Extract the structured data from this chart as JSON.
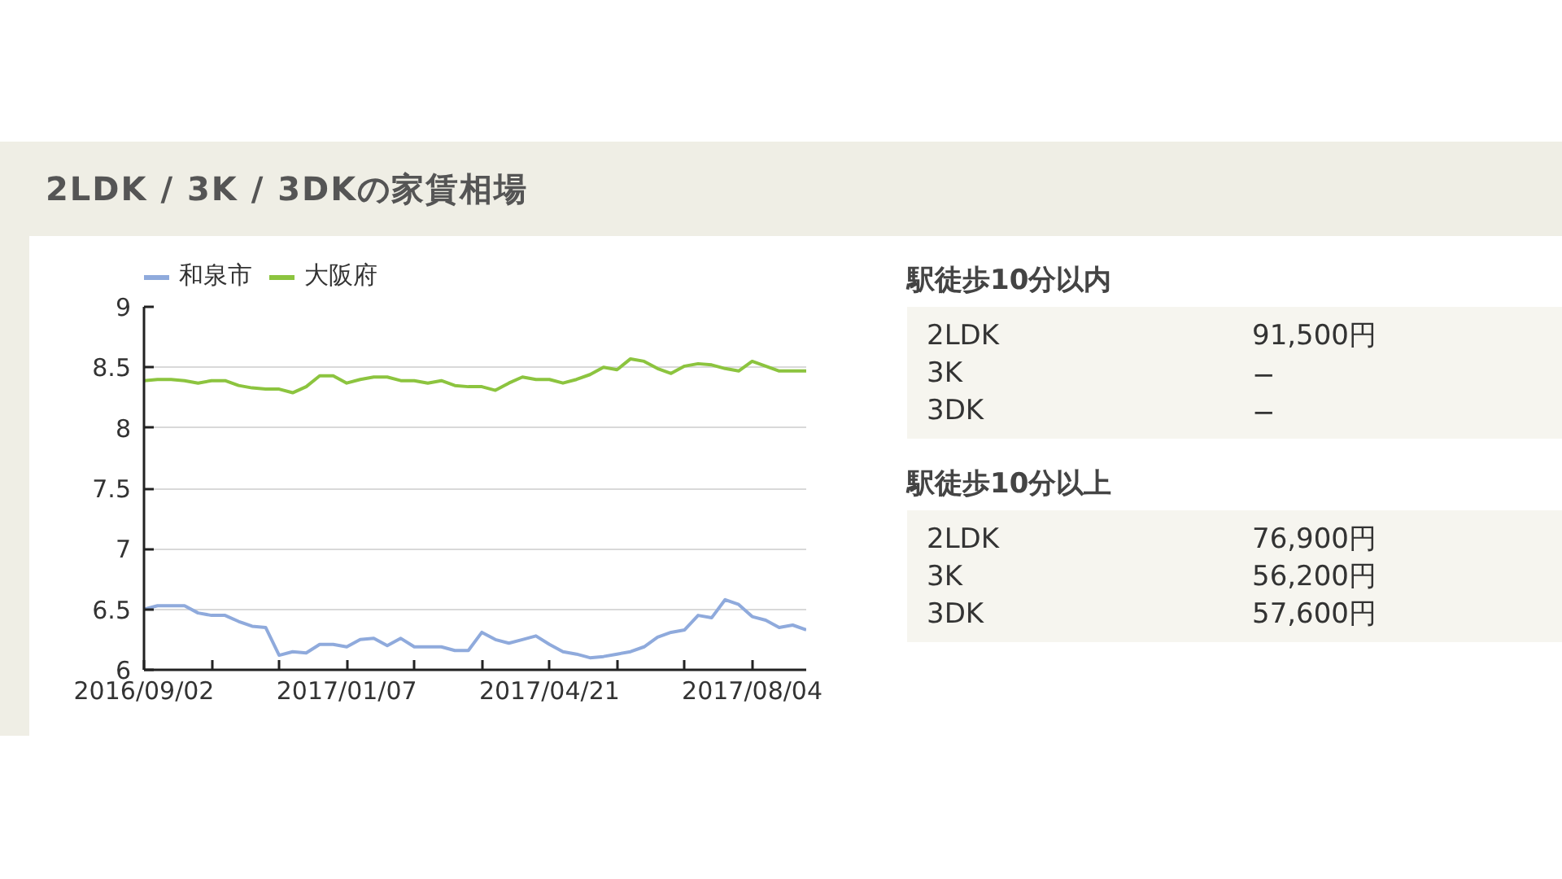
{
  "chart_data": [
    {
      "type": "line",
      "title": "2LDK / 3K / 3DKの家賃相場",
      "categories": [
        "2016/09/02",
        null,
        null,
        null,
        null,
        null,
        null,
        null,
        null,
        null,
        null,
        null,
        null,
        null,
        null,
        "2017/01/07",
        null,
        null,
        null,
        null,
        null,
        null,
        null,
        null,
        null,
        null,
        null,
        null,
        null,
        null,
        "2017/04/21",
        null,
        null,
        null,
        null,
        null,
        null,
        null,
        null,
        null,
        null,
        null,
        null,
        null,
        null,
        "2017/08/04",
        null,
        null,
        null,
        null
      ],
      "series": [
        {
          "name": "和泉市",
          "color": "#8faadc",
          "values": [
            6.5,
            6.53,
            6.53,
            6.53,
            6.47,
            6.45,
            6.45,
            6.4,
            6.36,
            6.35,
            6.12,
            6.15,
            6.14,
            6.21,
            6.21,
            6.19,
            6.25,
            6.26,
            6.2,
            6.26,
            6.19,
            6.19,
            6.19,
            6.16,
            6.16,
            6.31,
            6.25,
            6.22,
            6.25,
            6.28,
            6.21,
            6.15,
            6.13,
            6.1,
            6.11,
            6.13,
            6.15,
            6.19,
            6.27,
            6.31,
            6.33,
            6.45,
            6.43,
            6.58,
            6.54,
            6.44,
            6.41,
            6.35,
            6.37,
            6.33
          ]
        },
        {
          "name": "大阪府",
          "color": "#8cc43f",
          "values": [
            8.39,
            8.4,
            8.4,
            8.39,
            8.37,
            8.39,
            8.39,
            8.35,
            8.33,
            8.32,
            8.32,
            8.29,
            8.34,
            8.43,
            8.43,
            8.37,
            8.4,
            8.42,
            8.42,
            8.39,
            8.39,
            8.37,
            8.39,
            8.35,
            8.34,
            8.34,
            8.31,
            8.37,
            8.42,
            8.4,
            8.4,
            8.37,
            8.4,
            8.44,
            8.5,
            8.48,
            8.57,
            8.55,
            8.49,
            8.45,
            8.51,
            8.53,
            8.52,
            8.49,
            8.47,
            8.55,
            8.51,
            8.47,
            8.47,
            8.47
          ]
        }
      ],
      "ylim": [
        6,
        9
      ],
      "yticks": [
        6,
        6.5,
        7,
        7.5,
        8,
        8.5,
        9
      ],
      "grid": "y",
      "legend": "top left"
    },
    {
      "type": "other",
      "title": "駅徒歩10分以内",
      "categories": [
        "2LDK",
        "3K",
        "3DK"
      ],
      "value_labels": [
        "91,500円",
        "−",
        "−"
      ]
    },
    {
      "type": "other",
      "title": "駅徒歩10分以上",
      "categories": [
        "2LDK",
        "3K",
        "3DK"
      ],
      "value_labels": [
        "76,900円",
        "56,200円",
        "57,600円"
      ]
    }
  ]
}
